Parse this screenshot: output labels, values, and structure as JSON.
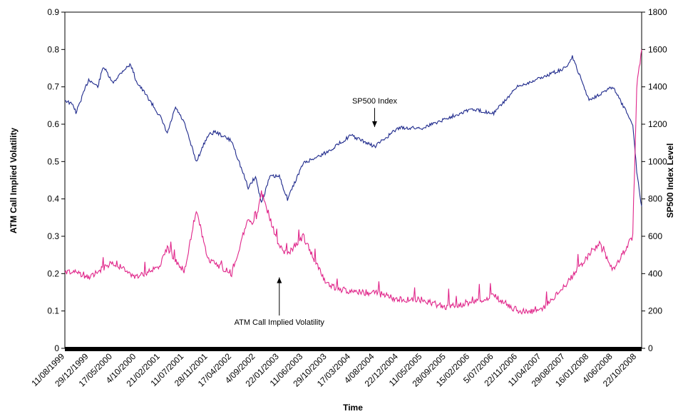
{
  "chart_data": {
    "type": "line",
    "xlabel": "Time",
    "ylabel_left": "ATM Call Implied Volatility",
    "ylabel_right": "SP500 Index Level",
    "ylim_left": [
      0,
      0.9
    ],
    "ylim_right": [
      0,
      1800
    ],
    "yticks_left": [
      "0",
      "0.1",
      "0.2",
      "0.3",
      "0.4",
      "0.5",
      "0.6",
      "0.7",
      "0.8",
      "0.9"
    ],
    "yticks_right": [
      "0",
      "200",
      "400",
      "600",
      "800",
      "1000",
      "1200",
      "1400",
      "1600",
      "1800"
    ],
    "x_tick_labels": [
      "11/08/1999",
      "29/12/1999",
      "17/05/2000",
      "4/10/2000",
      "21/02/2001",
      "11/07/2001",
      "28/11/2001",
      "17/04/2002",
      "4/09/2002",
      "22/01/2003",
      "11/06/2003",
      "29/10/2003",
      "17/03/2004",
      "4/08/2004",
      "22/12/2004",
      "11/05/2005",
      "28/09/2005",
      "15/02/2006",
      "5/07/2006",
      "22/11/2006",
      "11/04/2007",
      "29/08/2007",
      "16/01/2008",
      "4/06/2008",
      "22/10/2008"
    ],
    "grid": false,
    "series": [
      {
        "name": "SP500 Index",
        "axis": "right",
        "color": "#1f2a8c",
        "x": [
          "11/08/1999",
          "1/10/1999",
          "15/10/1999",
          "29/12/1999",
          "20/02/2000",
          "24/03/2000",
          "17/05/2000",
          "20/07/2000",
          "1/09/2000",
          "4/10/2000",
          "20/12/2000",
          "21/02/2001",
          "4/04/2001",
          "22/05/2001",
          "11/07/2001",
          "21/09/2001",
          "28/11/2001",
          "10/01/2002",
          "17/04/2002",
          "23/07/2002",
          "4/09/2002",
          "9/10/2002",
          "28/11/2002",
          "22/01/2003",
          "11/03/2003",
          "11/06/2003",
          "29/10/2003",
          "17/03/2004",
          "4/08/2004",
          "22/12/2004",
          "11/05/2005",
          "28/09/2005",
          "15/02/2006",
          "5/07/2006",
          "22/11/2006",
          "11/04/2007",
          "29/08/2007",
          "10/10/2007",
          "16/01/2008",
          "4/06/2008",
          "29/09/2008",
          "22/10/2008",
          "20/11/2008"
        ],
        "values": [
          1330,
          1300,
          1260,
          1440,
          1400,
          1510,
          1420,
          1490,
          1520,
          1430,
          1330,
          1240,
          1150,
          1290,
          1210,
          1000,
          1140,
          1160,
          1110,
          860,
          920,
          780,
          920,
          920,
          800,
          990,
          1050,
          1140,
          1080,
          1180,
          1180,
          1230,
          1280,
          1260,
          1400,
          1450,
          1500,
          1560,
          1330,
          1400,
          1200,
          950,
          760
        ]
      },
      {
        "name": "ATM Call Implied Volatility",
        "axis": "left",
        "color": "#e0268a",
        "x": [
          "11/08/1999",
          "1/10/1999",
          "29/12/1999",
          "17/05/2000",
          "4/10/2000",
          "21/02/2001",
          "4/04/2001",
          "11/07/2001",
          "21/09/2001",
          "28/11/2001",
          "17/04/2002",
          "23/07/2002",
          "4/09/2002",
          "9/10/2002",
          "22/01/2003",
          "11/03/2003",
          "11/06/2003",
          "29/10/2003",
          "17/03/2004",
          "4/08/2004",
          "22/12/2004",
          "11/05/2005",
          "28/09/2005",
          "15/02/2006",
          "5/07/2006",
          "22/11/2006",
          "11/04/2007",
          "29/08/2007",
          "16/01/2008",
          "17/03/2008",
          "4/06/2008",
          "29/09/2008",
          "22/10/2008",
          "20/11/2008"
        ],
        "values": [
          0.2,
          0.21,
          0.19,
          0.23,
          0.19,
          0.22,
          0.27,
          0.2,
          0.37,
          0.24,
          0.2,
          0.35,
          0.33,
          0.42,
          0.27,
          0.25,
          0.3,
          0.17,
          0.15,
          0.15,
          0.13,
          0.13,
          0.11,
          0.12,
          0.14,
          0.1,
          0.1,
          0.17,
          0.25,
          0.28,
          0.21,
          0.3,
          0.7,
          0.8
        ]
      }
    ],
    "annotations": [
      {
        "text": "SP500 Index",
        "x": "4/08/2004",
        "y_right": 1310,
        "arrow_to_y_right": 1185
      },
      {
        "text": "ATM Call Implied Volatility",
        "x": "22/01/2003",
        "y_left": 0.063,
        "arrow_to_y_left": 0.19
      }
    ]
  }
}
